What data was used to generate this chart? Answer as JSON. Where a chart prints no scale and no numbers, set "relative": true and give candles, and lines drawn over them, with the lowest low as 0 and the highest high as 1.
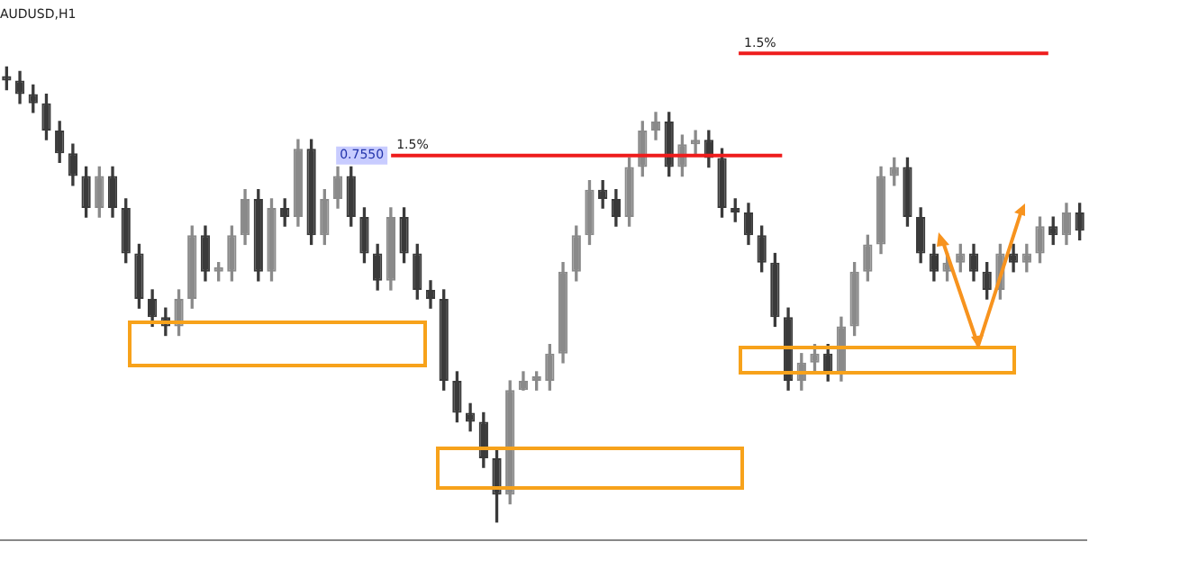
{
  "chart_data": {
    "type": "candlestick",
    "title": "AUDUSD,H1",
    "relative": true,
    "tick_labels": false,
    "grid": false,
    "legend": false,
    "categories": [
      null,
      null,
      null,
      null,
      null,
      null,
      null,
      null,
      null,
      null,
      null,
      null,
      null,
      null,
      null,
      null,
      null,
      null,
      null,
      null,
      null,
      null,
      null,
      null,
      null,
      null,
      null,
      null,
      null,
      null,
      null,
      null,
      null,
      null,
      null,
      null,
      null,
      null,
      null,
      null,
      null,
      null,
      null,
      null,
      null,
      null,
      null,
      null,
      null,
      null,
      null,
      null,
      null,
      null,
      null,
      null,
      null,
      null,
      null,
      null,
      null,
      null,
      null,
      null,
      null,
      null,
      null,
      null,
      null,
      null,
      null,
      null,
      null,
      null,
      null,
      null,
      null,
      null,
      null,
      null,
      null,
      null
    ],
    "series": [
      {
        "colors": [
          "#3a3a3a",
          "#3a3a3a",
          "#3a3a3a",
          "#3a3a3a",
          "#3a3a3a",
          "#3a3a3a",
          "#3a3a3a",
          "#8a8a8a",
          "#3a3a3a",
          "#3a3a3a",
          "#3a3a3a",
          "#3a3a3a",
          "#3a3a3a",
          "#8a8a8a",
          "#8a8a8a",
          "#3a3a3a",
          "#8a8a8a",
          "#8a8a8a",
          "#8a8a8a",
          "#3a3a3a",
          "#8a8a8a",
          "#3a3a3a",
          "#8a8a8a",
          "#3a3a3a",
          "#8a8a8a",
          "#8a8a8a",
          "#3a3a3a",
          "#3a3a3a",
          "#3a3a3a",
          "#8a8a8a",
          "#3a3a3a",
          "#3a3a3a",
          "#3a3a3a",
          "#3a3a3a",
          "#3a3a3a",
          "#3a3a3a",
          "#3a3a3a",
          "#3a3a3a",
          "#8a8a8a",
          "#8a8a8a",
          "#8a8a8a",
          "#8a8a8a",
          "#8a8a8a",
          "#8a8a8a",
          "#8a8a8a",
          "#3a3a3a",
          "#3a3a3a",
          "#8a8a8a",
          "#8a8a8a",
          "#8a8a8a",
          "#3a3a3a",
          "#8a8a8a",
          "#8a8a8a",
          "#3a3a3a",
          "#3a3a3a",
          "#3a3a3a",
          "#3a3a3a",
          "#3a3a3a",
          "#3a3a3a",
          "#3a3a3a",
          "#8a8a8a",
          "#8a8a8a",
          "#3a3a3a",
          "#8a8a8a",
          "#8a8a8a",
          "#8a8a8a",
          "#8a8a8a",
          "#8a8a8a",
          "#3a3a3a",
          "#3a3a3a",
          "#3a3a3a",
          "#8a8a8a",
          "#8a8a8a",
          "#3a3a3a",
          "#3a3a3a",
          "#8a8a8a",
          "#3a3a3a",
          "#8a8a8a",
          "#8a8a8a",
          "#3a3a3a",
          "#8a8a8a",
          "#3a3a3a"
        ],
        "ohlc": [
          [
            0.98,
            1.0,
            0.95,
            0.97
          ],
          [
            0.97,
            0.99,
            0.92,
            0.94
          ],
          [
            0.94,
            0.96,
            0.9,
            0.92
          ],
          [
            0.92,
            0.94,
            0.84,
            0.86
          ],
          [
            0.86,
            0.88,
            0.79,
            0.81
          ],
          [
            0.81,
            0.83,
            0.74,
            0.76
          ],
          [
            0.76,
            0.78,
            0.67,
            0.69
          ],
          [
            0.69,
            0.78,
            0.67,
            0.76
          ],
          [
            0.76,
            0.78,
            0.67,
            0.69
          ],
          [
            0.69,
            0.71,
            0.57,
            0.59
          ],
          [
            0.59,
            0.61,
            0.47,
            0.49
          ],
          [
            0.49,
            0.51,
            0.43,
            0.45
          ],
          [
            0.45,
            0.47,
            0.41,
            0.43
          ],
          [
            0.43,
            0.51,
            0.41,
            0.49
          ],
          [
            0.49,
            0.65,
            0.47,
            0.63
          ],
          [
            0.63,
            0.65,
            0.53,
            0.55
          ],
          [
            0.55,
            0.57,
            0.53,
            0.56
          ],
          [
            0.55,
            0.65,
            0.53,
            0.63
          ],
          [
            0.63,
            0.73,
            0.61,
            0.71
          ],
          [
            0.71,
            0.73,
            0.53,
            0.55
          ],
          [
            0.55,
            0.71,
            0.53,
            0.69
          ],
          [
            0.69,
            0.71,
            0.65,
            0.67
          ],
          [
            0.67,
            0.84,
            0.65,
            0.82
          ],
          [
            0.82,
            0.84,
            0.61,
            0.63
          ],
          [
            0.63,
            0.73,
            0.61,
            0.71
          ],
          [
            0.71,
            0.78,
            0.69,
            0.76
          ],
          [
            0.76,
            0.78,
            0.65,
            0.67
          ],
          [
            0.67,
            0.69,
            0.57,
            0.59
          ],
          [
            0.59,
            0.61,
            0.51,
            0.53
          ],
          [
            0.53,
            0.69,
            0.51,
            0.67
          ],
          [
            0.67,
            0.69,
            0.57,
            0.59
          ],
          [
            0.59,
            0.61,
            0.49,
            0.51
          ],
          [
            0.51,
            0.53,
            0.47,
            0.49
          ],
          [
            0.49,
            0.51,
            0.29,
            0.31
          ],
          [
            0.31,
            0.33,
            0.22,
            0.24
          ],
          [
            0.24,
            0.26,
            0.2,
            0.22
          ],
          [
            0.22,
            0.24,
            0.12,
            0.14
          ],
          [
            0.14,
            0.16,
            0.0,
            0.06
          ],
          [
            0.06,
            0.31,
            0.04,
            0.29
          ],
          [
            0.29,
            0.33,
            0.29,
            0.31
          ],
          [
            0.31,
            0.33,
            0.29,
            0.32
          ],
          [
            0.31,
            0.39,
            0.29,
            0.37
          ],
          [
            0.37,
            0.57,
            0.35,
            0.55
          ],
          [
            0.55,
            0.65,
            0.53,
            0.63
          ],
          [
            0.63,
            0.75,
            0.61,
            0.73
          ],
          [
            0.73,
            0.75,
            0.69,
            0.71
          ],
          [
            0.71,
            0.73,
            0.65,
            0.67
          ],
          [
            0.67,
            0.8,
            0.65,
            0.78
          ],
          [
            0.78,
            0.88,
            0.76,
            0.86
          ],
          [
            0.86,
            0.9,
            0.84,
            0.88
          ],
          [
            0.88,
            0.9,
            0.76,
            0.78
          ],
          [
            0.78,
            0.85,
            0.76,
            0.83
          ],
          [
            0.83,
            0.86,
            0.81,
            0.84
          ],
          [
            0.84,
            0.86,
            0.78,
            0.8
          ],
          [
            0.8,
            0.82,
            0.67,
            0.69
          ],
          [
            0.69,
            0.71,
            0.66,
            0.68
          ],
          [
            0.68,
            0.7,
            0.61,
            0.63
          ],
          [
            0.63,
            0.65,
            0.55,
            0.57
          ],
          [
            0.57,
            0.59,
            0.43,
            0.45
          ],
          [
            0.45,
            0.47,
            0.29,
            0.31
          ],
          [
            0.31,
            0.37,
            0.29,
            0.35
          ],
          [
            0.35,
            0.39,
            0.33,
            0.37
          ],
          [
            0.37,
            0.39,
            0.31,
            0.33
          ],
          [
            0.33,
            0.45,
            0.31,
            0.43
          ],
          [
            0.43,
            0.57,
            0.41,
            0.55
          ],
          [
            0.55,
            0.63,
            0.53,
            0.61
          ],
          [
            0.61,
            0.78,
            0.59,
            0.76
          ],
          [
            0.76,
            0.8,
            0.74,
            0.78
          ],
          [
            0.78,
            0.8,
            0.65,
            0.67
          ],
          [
            0.67,
            0.69,
            0.57,
            0.59
          ],
          [
            0.59,
            0.61,
            0.53,
            0.55
          ],
          [
            0.55,
            0.59,
            0.53,
            0.57
          ],
          [
            0.57,
            0.61,
            0.55,
            0.59
          ],
          [
            0.59,
            0.61,
            0.53,
            0.55
          ],
          [
            0.55,
            0.57,
            0.49,
            0.51
          ],
          [
            0.51,
            0.61,
            0.49,
            0.59
          ],
          [
            0.59,
            0.61,
            0.55,
            0.57
          ],
          [
            0.57,
            0.61,
            0.55,
            0.59
          ],
          [
            0.59,
            0.67,
            0.57,
            0.65
          ],
          [
            0.65,
            0.67,
            0.61,
            0.63
          ],
          [
            0.63,
            0.7,
            0.61,
            0.68
          ],
          [
            0.68,
            0.7,
            0.62,
            0.64
          ]
        ]
      }
    ],
    "ref_lines": [
      {
        "axis": "y",
        "value": 0.805,
        "color": "#ee1c1c"
      },
      {
        "axis": "y",
        "value": 1.03,
        "color": "#ee1c1c"
      }
    ],
    "annotations": [
      {
        "text": "0.7550",
        "y": 0.805
      },
      {
        "text": "1.5%",
        "y": 0.805
      },
      {
        "text": "1.5%",
        "y": 1.03
      }
    ]
  }
}
